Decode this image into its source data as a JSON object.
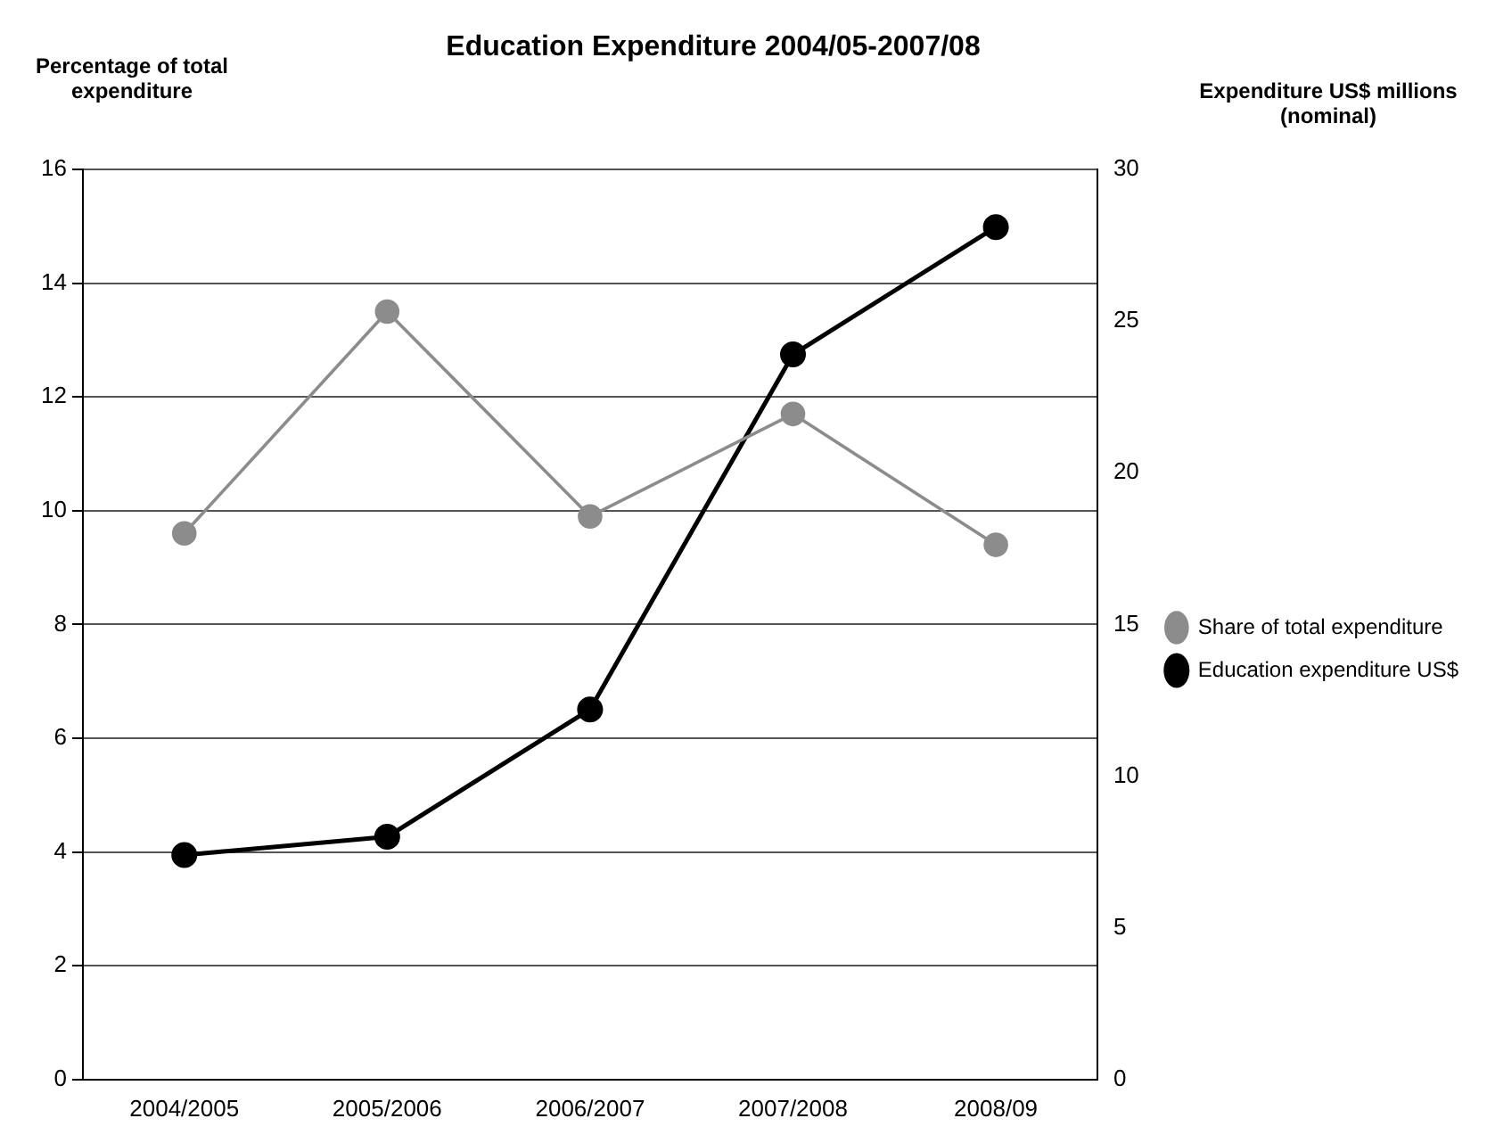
{
  "chart_data": {
    "type": "line",
    "title": "Education Expenditure 2004/05-2007/08",
    "ylabel": "Percentage of total expenditure",
    "y2label": "Expenditure US$ millions (nominal)",
    "categories": [
      "2004/2005",
      "2005/2006",
      "2006/2007",
      "2007/2008",
      "2008/09"
    ],
    "series": [
      {
        "name": "Share of total expenditure",
        "color": "#8c8c8c",
        "values": [
          9.6,
          13.5,
          9.9,
          11.7,
          9.4
        ]
      },
      {
        "name": "Education expenditure US$",
        "color": "#000000",
        "axis": "y2",
        "values": [
          7.4,
          8.0,
          12.2,
          23.9,
          28.1
        ]
      }
    ],
    "ylim": [
      0,
      16
    ],
    "yticks": [
      0,
      2,
      4,
      6,
      8,
      10,
      12,
      14,
      16
    ],
    "y2lim": [
      0,
      30
    ],
    "y2ticks": [
      0,
      5,
      10,
      15,
      20,
      25,
      30
    ],
    "grid": "y",
    "legend": "right",
    "marker": "circle",
    "line_style": "solid"
  }
}
